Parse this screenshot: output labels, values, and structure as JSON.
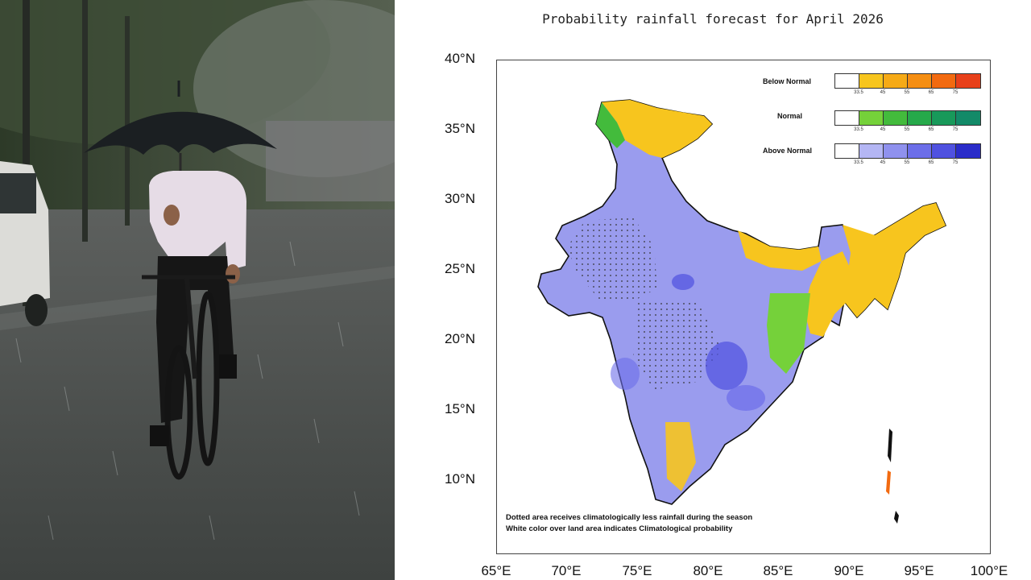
{
  "map": {
    "title": "Probability rainfall forecast for April 2026",
    "lat_labels": [
      "40°N",
      "35°N",
      "30°N",
      "25°N",
      "20°N",
      "15°N",
      "10°N"
    ],
    "lon_labels": [
      "65°E",
      "70°E",
      "75°E",
      "80°E",
      "85°E",
      "90°E",
      "95°E",
      "100°E"
    ],
    "legend": [
      {
        "name": "Below Normal",
        "colors": [
          "#ffffff",
          "#f7c51e",
          "#f6aa16",
          "#f58e12",
          "#f26a10",
          "#e8401a"
        ]
      },
      {
        "name": "Normal",
        "colors": [
          "#ffffff",
          "#75d13a",
          "#43bb3c",
          "#26a94a",
          "#18995a",
          "#138a68"
        ]
      },
      {
        "name": "Above Normal",
        "colors": [
          "#ffffff",
          "#b4b6f4",
          "#8f91ee",
          "#6c6ee9",
          "#4f51e0",
          "#2a2cc9"
        ]
      }
    ],
    "legend_ticks": [
      "33.5",
      "45",
      "55",
      "65",
      "75"
    ],
    "notes": [
      "Dotted area receives climatologically less rainfall during the season",
      "White color over land area indicates Climatological probability"
    ]
  }
}
